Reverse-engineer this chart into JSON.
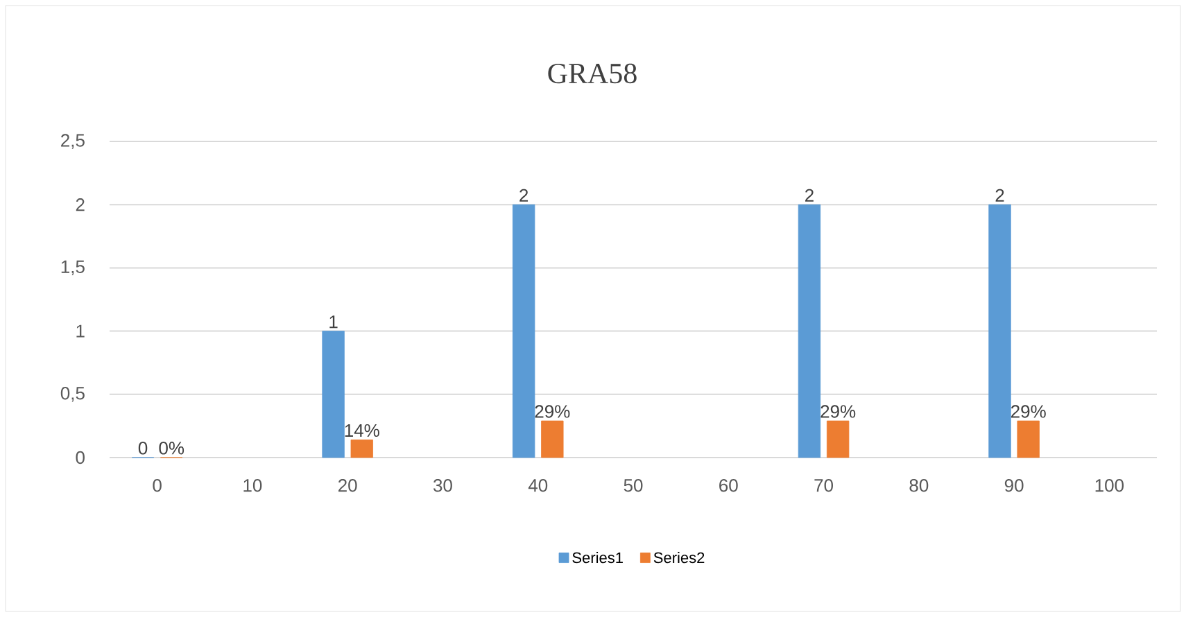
{
  "chart_data": {
    "type": "bar",
    "title": "GRA58",
    "categories": [
      "0",
      "10",
      "20",
      "30",
      "40",
      "50",
      "60",
      "70",
      "80",
      "90",
      "100"
    ],
    "series": [
      {
        "name": "Series1",
        "color": "#5b9bd5",
        "values": [
          0,
          null,
          1,
          null,
          2,
          null,
          null,
          2,
          null,
          2,
          null
        ],
        "value_labels": [
          "0",
          null,
          "1",
          null,
          "2",
          null,
          null,
          "2",
          null,
          "2",
          null
        ]
      },
      {
        "name": "Series2",
        "color": "#ed7d31",
        "values": [
          0,
          null,
          0.14,
          null,
          0.29,
          null,
          null,
          0.29,
          null,
          0.29,
          null
        ],
        "value_labels": [
          "0%",
          null,
          "14%",
          null,
          "29%",
          null,
          null,
          "29%",
          null,
          "29%",
          null
        ]
      }
    ],
    "ylim": [
      0,
      2.5
    ],
    "yticks": [
      0,
      {
        "value": 0.5,
        "label": "0,5"
      },
      1,
      {
        "value": 1.5,
        "label": "1,5"
      },
      2,
      {
        "value": 2.5,
        "label": "2,5"
      }
    ],
    "grid": "y",
    "legend": "bottom"
  }
}
